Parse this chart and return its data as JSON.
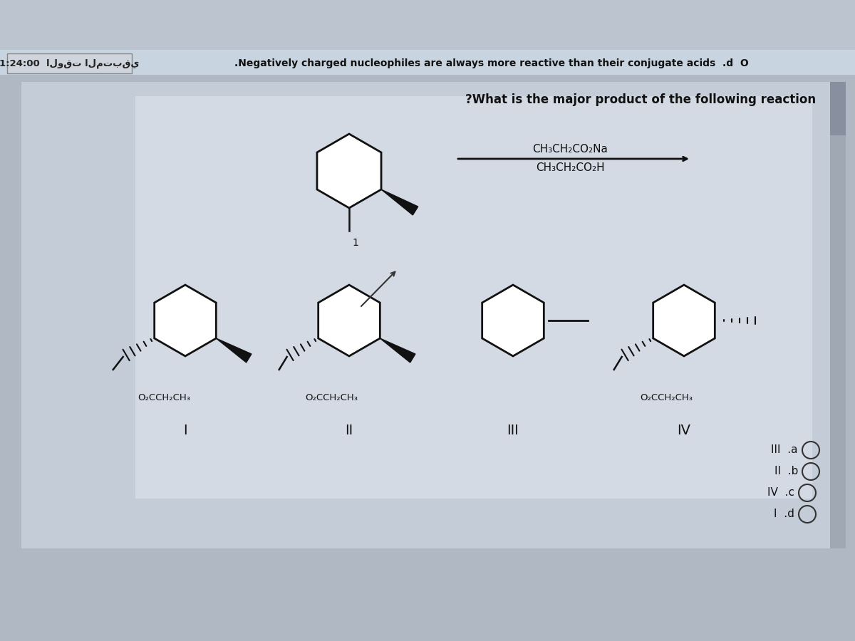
{
  "bg_color": "#b8bec8",
  "top_bar_color": "#c8d0dc",
  "card_bg": "#c0c8d4",
  "inner_card_bg": "#d8dce4",
  "timer_box_color": "#d0d4dc",
  "timer_text": "1:24:00",
  "arabic_label": "الوقت المتبقي",
  "statement_text": ".Negatively charged nucleophiles are always more reactive than their conjugate acids  .d  O",
  "question_text": "?What is the major product of the following reaction",
  "reagent1": "CH₃CH₂CO₂Na",
  "reagent2": "CH₃CH₂CO₂H",
  "label_I": "I",
  "label_II": "II",
  "label_III": "III",
  "label_IV": "IV",
  "option_a": "III  .a",
  "option_b": "II  .b",
  "option_c": "IV  .c",
  "option_d": "I  .d",
  "sub_I": "O₂CCH₂CH₃",
  "sub_II": "O₂CCH₂CH₃",
  "sub_IV": "O₂CCH₂CH₃"
}
